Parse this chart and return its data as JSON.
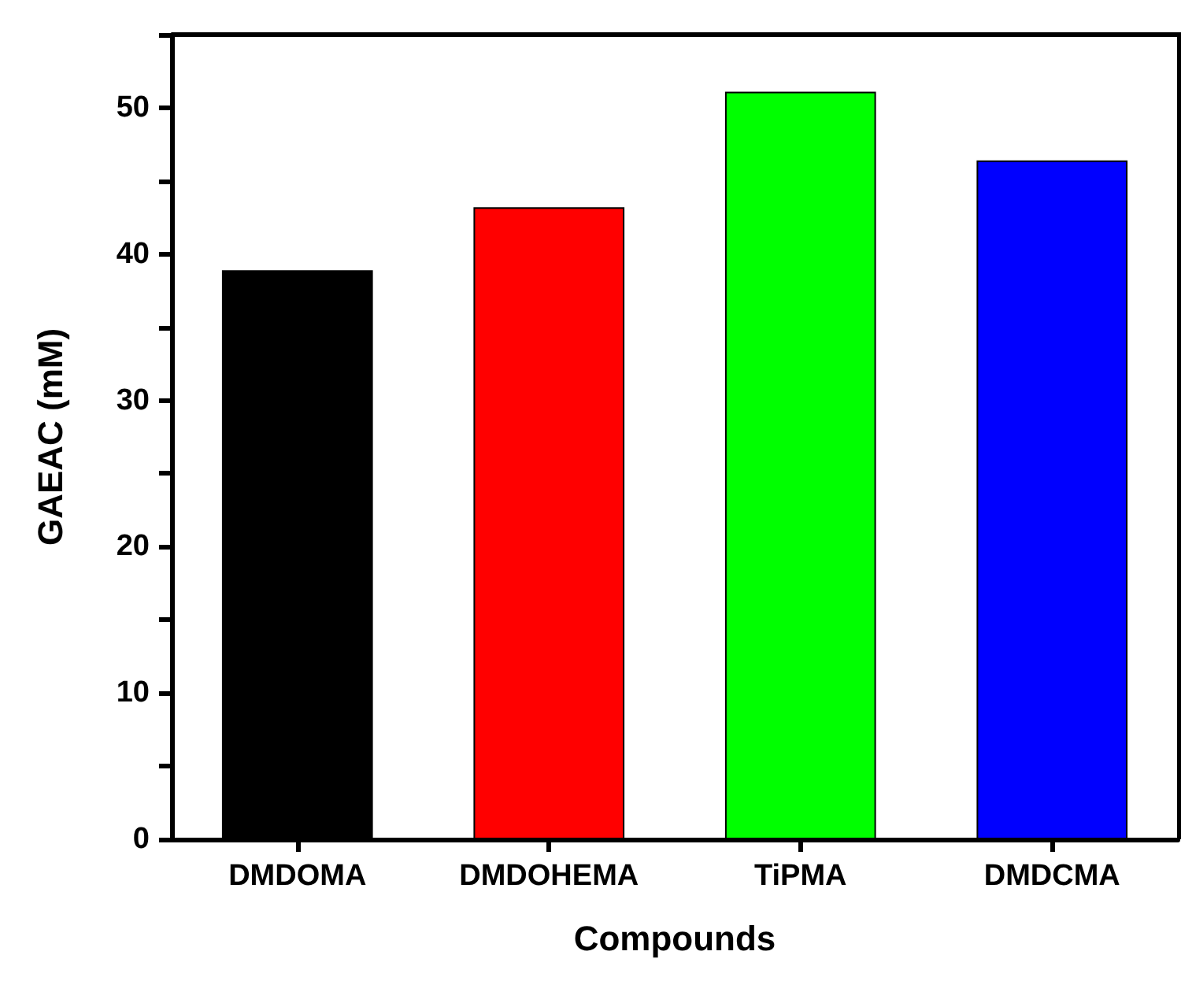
{
  "chart_data": {
    "type": "bar",
    "xlabel": "Compounds",
    "ylabel": "GAEAC (mM)",
    "categories": [
      "DMDOMA",
      "DMDOHEMA",
      "TiPMA",
      "DMDCMA"
    ],
    "values": [
      38.9,
      43.2,
      51.1,
      46.4
    ],
    "colors": [
      "#000000",
      "#ff0000",
      "#00ff00",
      "#0000ff"
    ],
    "ylim": [
      0,
      55
    ],
    "yticks": [
      0,
      {
        "value": 5,
        "label": null
      },
      10,
      {
        "value": 15,
        "label": null
      },
      20,
      {
        "value": 25,
        "label": null
      },
      30,
      {
        "value": 35,
        "label": null
      },
      40,
      {
        "value": 45,
        "label": null
      },
      50,
      {
        "value": 55,
        "label": null
      }
    ],
    "grid": false
  }
}
